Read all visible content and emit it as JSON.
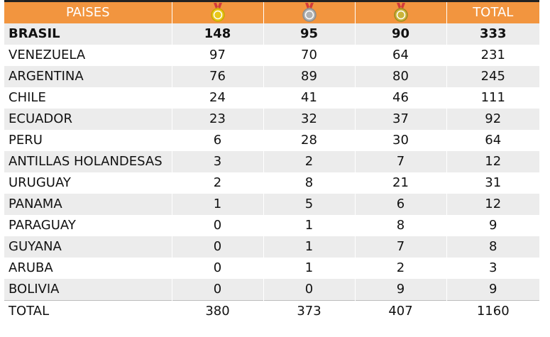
{
  "header": {
    "country_label": "PAISES",
    "total_label": "TOTAL",
    "medals": [
      {
        "name": "gold-medal-icon",
        "color": "#e8c81a",
        "ring": "#c9a800"
      },
      {
        "name": "silver-medal-icon",
        "color": "#b0b0b0",
        "ring": "#8c8c8c"
      },
      {
        "name": "bronze-medal-icon",
        "color": "#c9b43a",
        "ring": "#a08a20"
      }
    ],
    "ribbon_color": "#d23b3b"
  },
  "rows": [
    {
      "country": "BRASIL",
      "gold": "148",
      "silver": "95",
      "bronze": "90",
      "total": "333"
    },
    {
      "country": "VENEZUELA",
      "gold": "97",
      "silver": "70",
      "bronze": "64",
      "total": "231"
    },
    {
      "country": "ARGENTINA",
      "gold": "76",
      "silver": "89",
      "bronze": "80",
      "total": "245"
    },
    {
      "country": "CHILE",
      "gold": "24",
      "silver": "41",
      "bronze": "46",
      "total": "111"
    },
    {
      "country": "ECUADOR",
      "gold": "23",
      "silver": "32",
      "bronze": "37",
      "total": "92"
    },
    {
      "country": "PERU",
      "gold": "6",
      "silver": "28",
      "bronze": "30",
      "total": "64"
    },
    {
      "country": "ANTILLAS HOLANDESAS",
      "gold": "3",
      "silver": "2",
      "bronze": "7",
      "total": "12"
    },
    {
      "country": "URUGUAY",
      "gold": "2",
      "silver": "8",
      "bronze": "21",
      "total": "31"
    },
    {
      "country": "PANAMA",
      "gold": "1",
      "silver": "5",
      "bronze": "6",
      "total": "12"
    },
    {
      "country": "PARAGUAY",
      "gold": "0",
      "silver": "1",
      "bronze": "8",
      "total": "9"
    },
    {
      "country": "GUYANA",
      "gold": "0",
      "silver": "1",
      "bronze": "7",
      "total": "8"
    },
    {
      "country": "ARUBA",
      "gold": "0",
      "silver": "1",
      "bronze": "2",
      "total": "3"
    },
    {
      "country": "BOLIVIA",
      "gold": "0",
      "silver": "0",
      "bronze": "9",
      "total": "9"
    }
  ],
  "footer": {
    "label": "TOTAL",
    "gold": "380",
    "silver": "373",
    "bronze": "407",
    "total": "1160"
  }
}
